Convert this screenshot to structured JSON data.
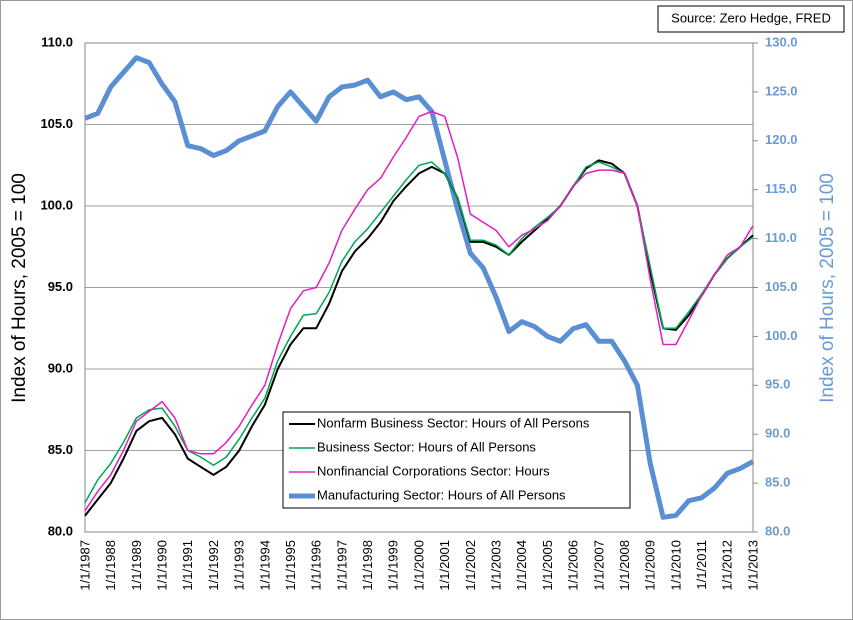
{
  "chart_data": {
    "type": "line",
    "source": "Source: Zero Hedge, FRED",
    "y_label": "Index of Hours, 2005 = 100",
    "y2_label": "Index of Hours, 2005 = 100",
    "categories": [
      "1/1/1987",
      null,
      "1/1/1988",
      null,
      "1/1/1989",
      null,
      "1/1/1990",
      null,
      "1/1/1991",
      null,
      "1/1/1992",
      null,
      "1/1/1993",
      null,
      "1/1/1994",
      null,
      "1/1/1995",
      null,
      "1/1/1996",
      null,
      "1/1/1997",
      null,
      "1/1/1998",
      null,
      "1/1/1999",
      null,
      "1/1/2000",
      null,
      "1/1/2001",
      null,
      "1/1/2002",
      null,
      "1/1/2003",
      null,
      "1/1/2004",
      null,
      "1/1/2005",
      null,
      "1/1/2006",
      null,
      "1/1/2007",
      null,
      "1/1/2008",
      null,
      "1/1/2009",
      null,
      "1/1/2010",
      null,
      "1/1/2011",
      null,
      "1/1/2012",
      null,
      "1/1/2013"
    ],
    "ylim": [
      80,
      110
    ],
    "yticks": [
      {
        "value": 80,
        "label": "80.0"
      },
      {
        "value": 85,
        "label": "85.0"
      },
      {
        "value": 90,
        "label": "90.0"
      },
      {
        "value": 95,
        "label": "95.0"
      },
      {
        "value": 100,
        "label": "100.0"
      },
      {
        "value": 105,
        "label": "105.0"
      },
      {
        "value": 110,
        "label": "110.0"
      }
    ],
    "y2lim": [
      80,
      130
    ],
    "y2ticks": [
      {
        "value": 80,
        "label": "80.0"
      },
      {
        "value": 85,
        "label": "85.0"
      },
      {
        "value": 90,
        "label": "90.0"
      },
      {
        "value": 95,
        "label": "95.0"
      },
      {
        "value": 100,
        "label": "100.0"
      },
      {
        "value": 105,
        "label": "105.0"
      },
      {
        "value": 110,
        "label": "110.0"
      },
      {
        "value": 115,
        "label": "115.0"
      },
      {
        "value": 120,
        "label": "120.0"
      },
      {
        "value": 125,
        "label": "125.0"
      },
      {
        "value": 130,
        "label": "130.0"
      }
    ],
    "grid": true,
    "series": [
      {
        "name": "Nonfarm Business Sector: Hours of All Persons",
        "color": "#000000",
        "width": 2,
        "values": [
          81.0,
          82.0,
          83.0,
          84.5,
          86.2,
          86.8,
          87.0,
          86.0,
          84.5,
          84.0,
          83.5,
          84.0,
          85.0,
          86.5,
          87.8,
          90.0,
          91.5,
          92.5,
          92.5,
          94.0,
          96.0,
          97.2,
          98.0,
          99.0,
          100.3,
          101.2,
          102.0,
          102.4,
          102.0,
          100.5,
          97.8,
          97.8,
          97.5,
          97.0,
          97.8,
          98.5,
          99.2,
          100.0,
          101.2,
          102.3,
          102.8,
          102.6,
          102.0,
          100.0,
          96.0,
          92.5,
          92.4,
          93.3,
          94.5,
          95.8,
          96.8,
          97.5,
          98.2
        ]
      },
      {
        "name": "Business Sector: Hours of All Persons",
        "color": "#00a651",
        "width": 1.5,
        "values": [
          81.8,
          83.2,
          84.2,
          85.5,
          87.0,
          87.5,
          87.6,
          86.5,
          85.0,
          84.6,
          84.1,
          84.6,
          85.7,
          87.0,
          88.2,
          90.5,
          92.0,
          93.3,
          93.4,
          94.7,
          96.6,
          97.8,
          98.6,
          99.6,
          100.6,
          101.6,
          102.5,
          102.7,
          102.0,
          100.5,
          97.9,
          97.9,
          97.6,
          97.0,
          98.0,
          98.7,
          99.3,
          100.0,
          101.2,
          102.4,
          102.7,
          102.4,
          102.0,
          100.0,
          96.3,
          92.5,
          92.5,
          93.5,
          94.6,
          95.8,
          96.8,
          97.5,
          98.1
        ]
      },
      {
        "name": "Nonfinancial Corporations Sector: Hours",
        "color": "#e020c0",
        "width": 1.5,
        "values": [
          81.3,
          82.5,
          83.5,
          85.0,
          86.8,
          87.4,
          88.0,
          87.0,
          85.0,
          84.8,
          84.8,
          85.5,
          86.5,
          87.8,
          89.0,
          91.5,
          93.7,
          94.8,
          95.0,
          96.5,
          98.5,
          99.8,
          101.0,
          101.7,
          103.0,
          104.2,
          105.5,
          105.8,
          105.5,
          103.0,
          99.5,
          99.0,
          98.5,
          97.5,
          98.2,
          98.6,
          99.1,
          100.0,
          101.2,
          102.0,
          102.2,
          102.2,
          102.0,
          100.0,
          95.5,
          91.5,
          91.5,
          93.0,
          94.5,
          95.8,
          97.0,
          97.5,
          98.8
        ]
      },
      {
        "name": "Manufacturing Sector: Hours of All Persons",
        "color": "#5b8fd4",
        "width": 5,
        "axis": "y2",
        "values": [
          122.3,
          122.8,
          125.5,
          127.0,
          128.5,
          128.0,
          125.8,
          124.0,
          119.5,
          119.2,
          118.5,
          119.0,
          120.0,
          120.5,
          121.0,
          123.5,
          125.0,
          123.5,
          122.0,
          124.5,
          125.5,
          125.7,
          126.2,
          124.5,
          125.0,
          124.2,
          124.5,
          123.0,
          118.0,
          113.0,
          108.5,
          107.0,
          104.0,
          100.5,
          101.5,
          101.0,
          100.0,
          99.5,
          100.8,
          101.2,
          99.5,
          99.5,
          97.5,
          95.0,
          87.0,
          81.5,
          81.7,
          83.2,
          83.5,
          84.5,
          86.0,
          86.5,
          87.2
        ]
      }
    ]
  }
}
